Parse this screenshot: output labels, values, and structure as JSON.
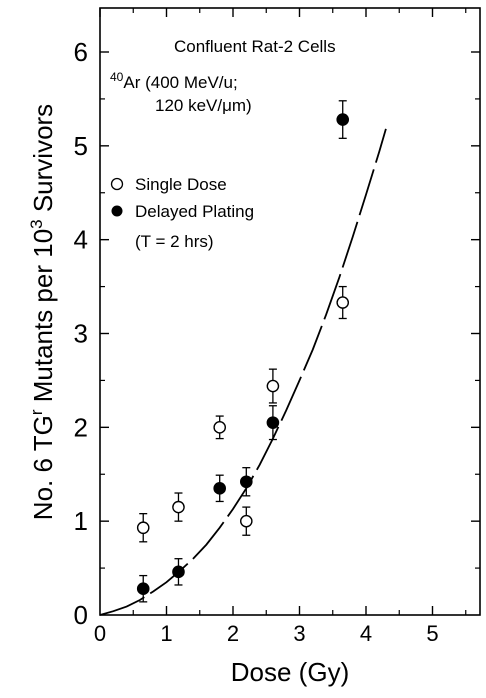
{
  "chart_data": {
    "type": "scatter",
    "title": "Confluent Rat-2 Cells",
    "annotation": {
      "ion_mass": "40",
      "ion_rest": "Ar (400 MeV/u;",
      "let": "120 keV/μm)"
    },
    "xlabel": "Dose (Gy)",
    "ylabel": {
      "part1": "No. 6 TG",
      "sup1": "r",
      "part2": " Mutants per 10",
      "sup2": "3",
      "part3": " Survivors"
    },
    "xlim": [
      0,
      6
    ],
    "ylim": [
      0,
      6.5
    ],
    "xticks": [
      "0",
      "1",
      "2",
      "3",
      "4",
      "5"
    ],
    "yticks": [
      "0",
      "1",
      "2",
      "3",
      "4",
      "5",
      "6"
    ],
    "legend": {
      "position": "upper-left",
      "entries": [
        "Single Dose",
        "Delayed Plating"
      ],
      "note": "(T = 2 hrs)"
    },
    "series": [
      {
        "name": "Single Dose",
        "marker": "open-circle",
        "x": [
          0.65,
          1.18,
          1.8,
          2.2,
          2.6,
          3.65
        ],
        "y": [
          0.93,
          1.15,
          2.0,
          1.0,
          2.44,
          3.33
        ],
        "err": [
          0.15,
          0.15,
          0.12,
          0.15,
          0.18,
          0.17
        ]
      },
      {
        "name": "Delayed Plating",
        "marker": "filled-circle",
        "x": [
          0.65,
          1.18,
          1.8,
          2.2,
          2.6,
          3.65
        ],
        "y": [
          0.28,
          0.46,
          1.35,
          1.42,
          2.05,
          5.28
        ],
        "err": [
          0.14,
          0.14,
          0.14,
          0.15,
          0.18,
          0.2
        ]
      }
    ],
    "fit_curve": {
      "style": "dashed",
      "x": [
        0.0,
        0.2,
        0.4,
        0.6,
        0.8,
        1.0,
        1.2,
        1.4,
        1.6,
        1.8,
        2.0,
        2.2,
        2.4,
        2.6,
        2.8,
        3.0,
        3.2,
        3.4,
        3.6,
        3.8,
        4.0,
        4.2,
        4.3
      ],
      "y": [
        0.0,
        0.04,
        0.09,
        0.16,
        0.25,
        0.35,
        0.47,
        0.6,
        0.75,
        0.93,
        1.13,
        1.35,
        1.6,
        1.88,
        2.18,
        2.5,
        2.83,
        3.2,
        3.6,
        4.03,
        4.48,
        4.94,
        5.18
      ]
    }
  }
}
